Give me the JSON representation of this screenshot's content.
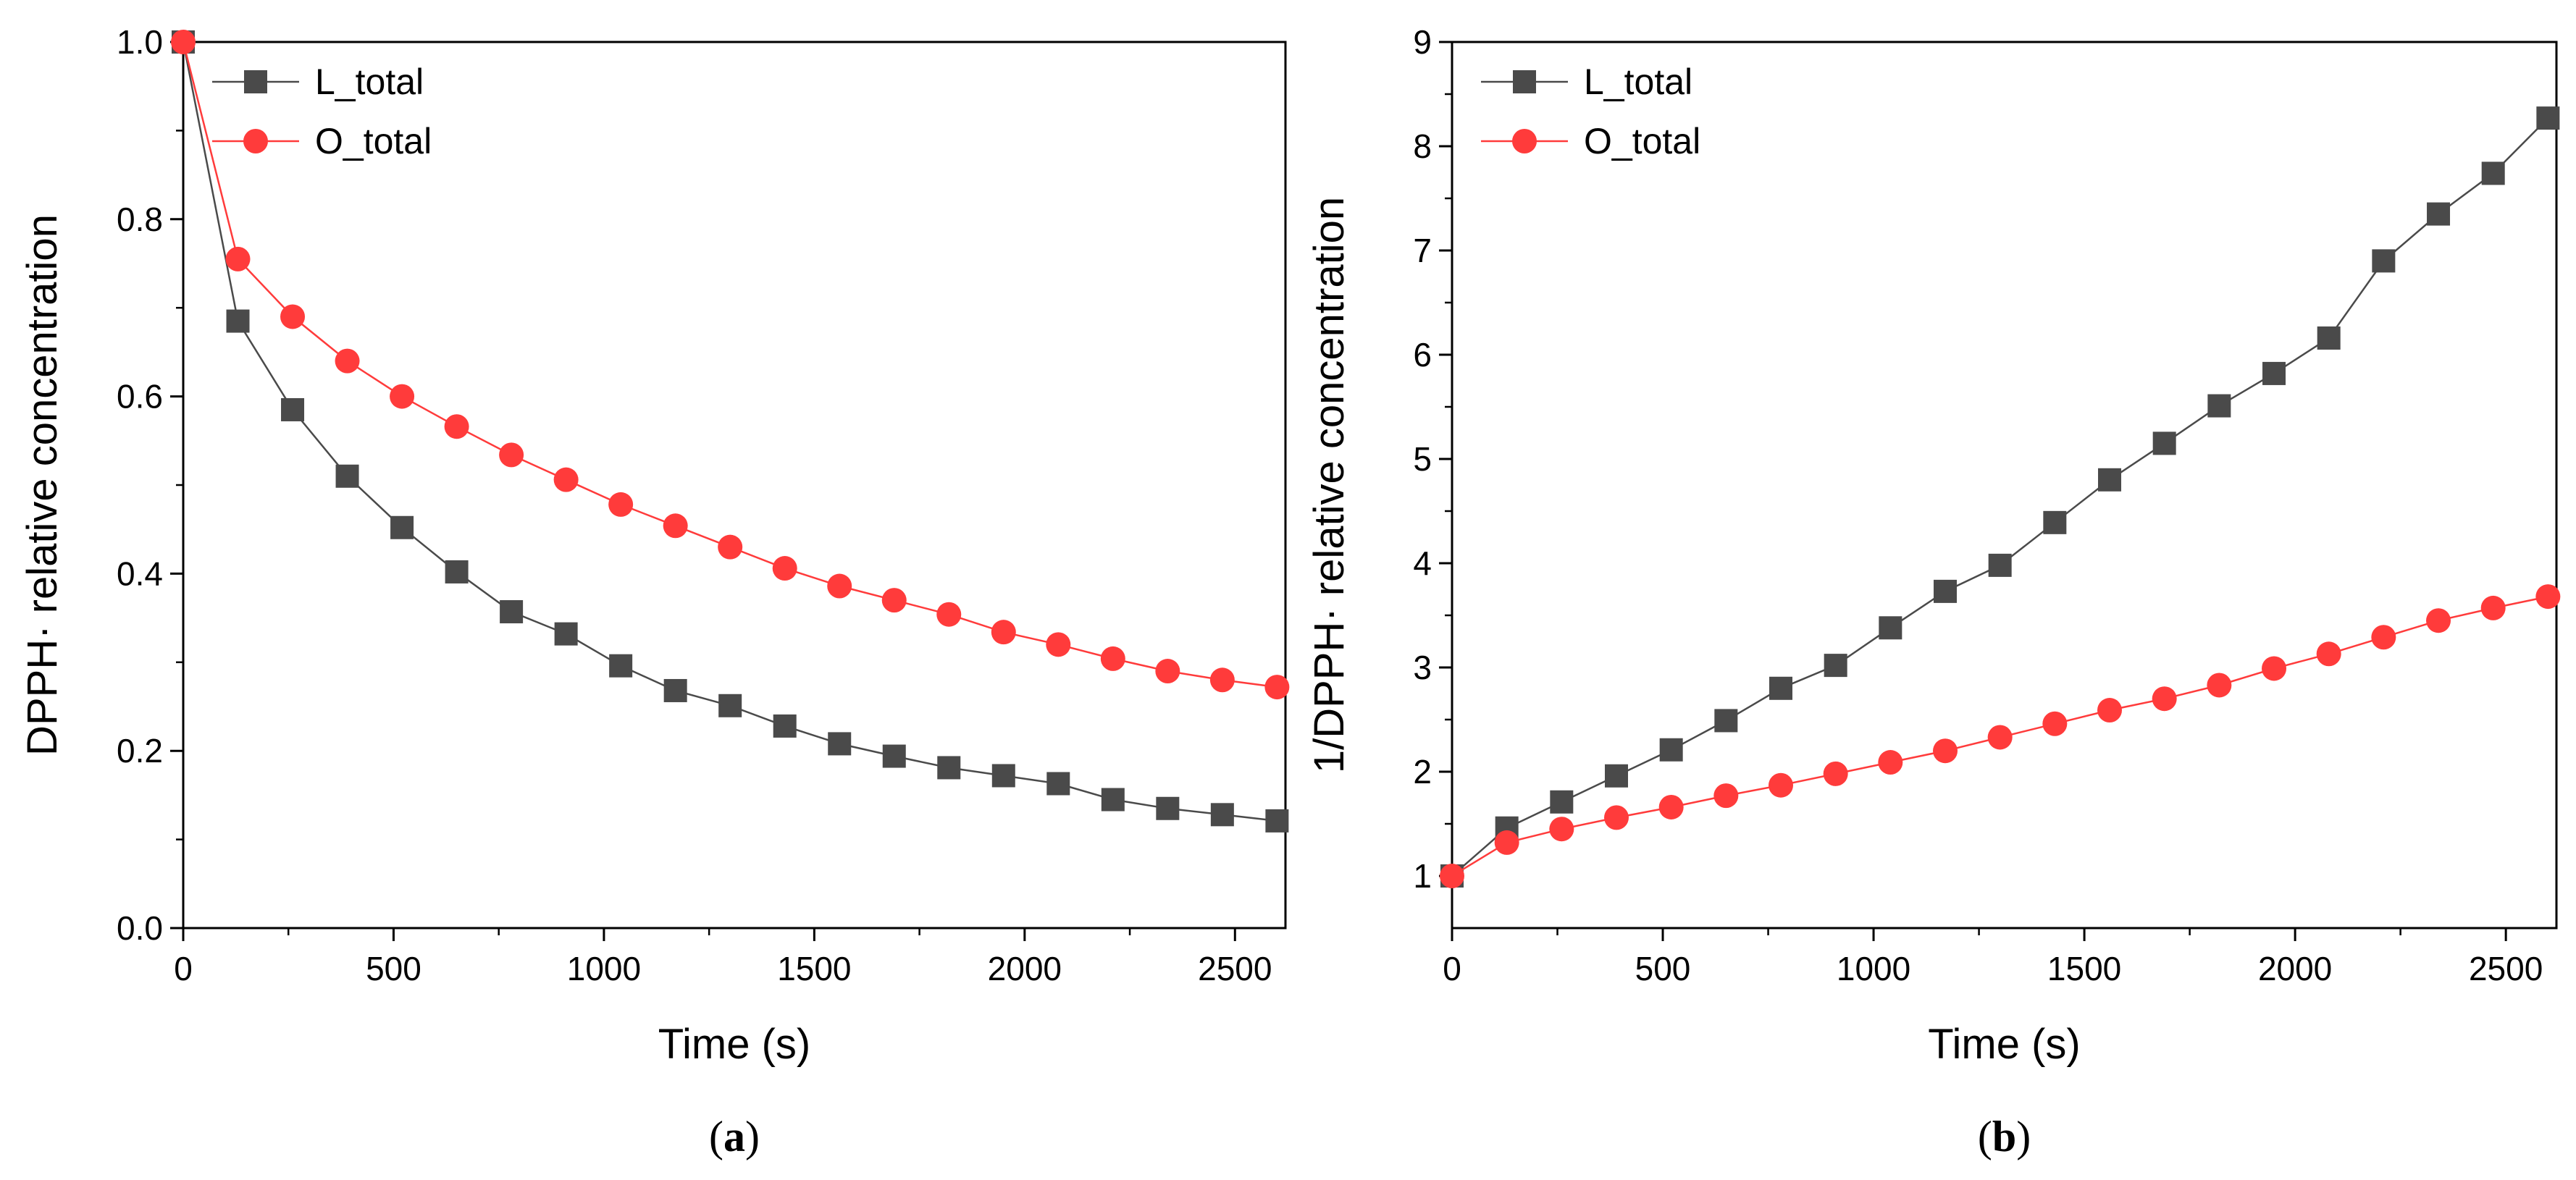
{
  "chart_data": [
    {
      "type": "line",
      "panel": "a",
      "caption": {
        "open": "(",
        "letter": "a",
        "close": ")"
      },
      "xlabel": "Time (s)",
      "ylabel": "DPPH· relative concentration",
      "xlim": [
        0,
        2620
      ],
      "ylim": [
        0,
        1.0
      ],
      "xticks": [
        0,
        500,
        1000,
        1500,
        2000,
        2500
      ],
      "xtick_labels": [
        "0",
        "500",
        "1000",
        "1500",
        "2000",
        "2500"
      ],
      "yticks": [
        0,
        0.2,
        0.4,
        0.6,
        0.8,
        1.0
      ],
      "ytick_labels": [
        "0.0",
        "0.2",
        "0.4",
        "0.6",
        "0.8",
        "1.0"
      ],
      "legend_position": "top-left",
      "grid": false,
      "x": [
        0,
        130,
        260,
        390,
        520,
        650,
        780,
        910,
        1040,
        1170,
        1300,
        1430,
        1560,
        1690,
        1820,
        1950,
        2080,
        2210,
        2340,
        2470,
        2600
      ],
      "series": [
        {
          "name": "L_total",
          "marker": "square",
          "color": "#4a4a4a",
          "values": [
            1.0,
            0.685,
            0.585,
            0.51,
            0.452,
            0.402,
            0.357,
            0.332,
            0.296,
            0.268,
            0.251,
            0.228,
            0.208,
            0.194,
            0.181,
            0.172,
            0.163,
            0.145,
            0.135,
            0.128,
            0.121
          ]
        },
        {
          "name": "O_total",
          "marker": "circle",
          "color": "#ff3b3b",
          "values": [
            1.0,
            0.755,
            0.69,
            0.64,
            0.6,
            0.566,
            0.534,
            0.506,
            0.478,
            0.454,
            0.43,
            0.406,
            0.386,
            0.37,
            0.354,
            0.334,
            0.32,
            0.304,
            0.29,
            0.28,
            0.272
          ]
        }
      ]
    },
    {
      "type": "line",
      "panel": "b",
      "caption": {
        "open": "(",
        "letter": "b",
        "close": ")"
      },
      "xlabel": "Time (s)",
      "ylabel": "1/DPPH· relative concentration",
      "xlim": [
        0,
        2620
      ],
      "ylim": [
        0.5,
        9
      ],
      "xticks": [
        0,
        500,
        1000,
        1500,
        2000,
        2500
      ],
      "xtick_labels": [
        "0",
        "500",
        "1000",
        "1500",
        "2000",
        "2500"
      ],
      "yticks": [
        1,
        2,
        3,
        4,
        5,
        6,
        7,
        8,
        9
      ],
      "ytick_labels": [
        "1",
        "2",
        "3",
        "4",
        "5",
        "6",
        "7",
        "8",
        "9"
      ],
      "legend_position": "top-left",
      "grid": false,
      "x": [
        0,
        130,
        260,
        390,
        520,
        650,
        780,
        910,
        1040,
        1170,
        1300,
        1430,
        1560,
        1690,
        1820,
        1950,
        2080,
        2210,
        2340,
        2470,
        2600
      ],
      "series": [
        {
          "name": "L_total",
          "marker": "square",
          "color": "#4a4a4a",
          "values": [
            1.0,
            1.46,
            1.71,
            1.96,
            2.21,
            2.49,
            2.8,
            3.02,
            3.38,
            3.73,
            3.98,
            4.39,
            4.8,
            5.15,
            5.51,
            5.82,
            6.16,
            6.9,
            7.35,
            7.74,
            8.27
          ]
        },
        {
          "name": "O_total",
          "marker": "circle",
          "color": "#ff3b3b",
          "values": [
            1.0,
            1.32,
            1.45,
            1.56,
            1.66,
            1.77,
            1.87,
            1.98,
            2.09,
            2.2,
            2.33,
            2.46,
            2.59,
            2.7,
            2.83,
            2.99,
            3.13,
            3.29,
            3.45,
            3.57,
            3.68
          ]
        }
      ]
    }
  ]
}
